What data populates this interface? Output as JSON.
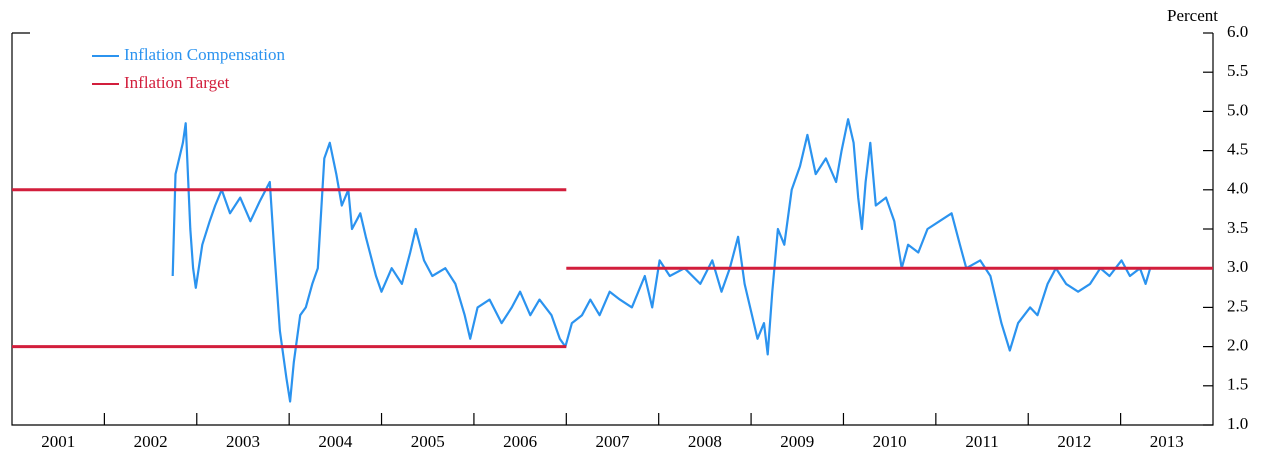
{
  "chart_data": {
    "type": "line",
    "y_axis_label": "Percent",
    "xlim": [
      2001,
      2014
    ],
    "xticks": [
      2001,
      2002,
      2003,
      2004,
      2005,
      2006,
      2007,
      2008,
      2009,
      2010,
      2011,
      2012,
      2013
    ],
    "ylim": [
      1,
      6
    ],
    "yticks": [
      {
        "value": 1,
        "label": "1.0"
      },
      1.5,
      {
        "value": 2,
        "label": "2.0"
      },
      2.5,
      {
        "value": 3,
        "label": "3.0"
      },
      3.5,
      {
        "value": 4,
        "label": "4.0"
      },
      4.5,
      {
        "value": 5,
        "label": "5.0"
      },
      5.5,
      {
        "value": 6,
        "label": "6.0"
      }
    ],
    "series": [
      {
        "name": "Inflation Compensation",
        "color": "#2b93ef",
        "x": [
          2002.74,
          2002.77,
          2002.85,
          2002.88,
          2002.93,
          2002.96,
          2002.99,
          2003.06,
          2003.14,
          2003.2,
          2003.27,
          2003.36,
          2003.47,
          2003.58,
          2003.68,
          2003.79,
          2003.84,
          2003.9,
          2003.97,
          2004.01,
          2004.05,
          2004.12,
          2004.18,
          2004.25,
          2004.31,
          2004.38,
          2004.44,
          2004.51,
          2004.57,
          2004.64,
          2004.68,
          2004.77,
          2004.83,
          2004.94,
          2005.0,
          2005.11,
          2005.22,
          2005.31,
          2005.37,
          2005.46,
          2005.55,
          2005.69,
          2005.8,
          2005.9,
          2005.96,
          2006.04,
          2006.17,
          2006.3,
          2006.41,
          2006.5,
          2006.61,
          2006.71,
          2006.84,
          2006.93,
          2006.99,
          2007.06,
          2007.17,
          2007.26,
          2007.36,
          2007.47,
          2007.58,
          2007.71,
          2007.85,
          2007.93,
          2008.01,
          2008.12,
          2008.28,
          2008.45,
          2008.58,
          2008.68,
          2008.77,
          2008.86,
          2008.93,
          2009.01,
          2009.07,
          2009.14,
          2009.18,
          2009.23,
          2009.29,
          2009.36,
          2009.44,
          2009.53,
          2009.61,
          2009.7,
          2009.81,
          2009.92,
          2009.98,
          2010.05,
          2010.11,
          2010.16,
          2010.2,
          2010.24,
          2010.29,
          2010.35,
          2010.46,
          2010.55,
          2010.63,
          2010.7,
          2010.81,
          2010.91,
          2011.04,
          2011.17,
          2011.26,
          2011.33,
          2011.48,
          2011.59,
          2011.65,
          2011.71,
          2011.8,
          2011.89,
          2012.02,
          2012.1,
          2012.21,
          2012.3,
          2012.41,
          2012.54,
          2012.67,
          2012.78,
          2012.88,
          2013.01,
          2013.1,
          2013.21,
          2013.27,
          2013.32
        ],
        "values": [
          2.9,
          4.2,
          4.6,
          4.85,
          3.5,
          3.0,
          2.75,
          3.3,
          3.6,
          3.8,
          4.0,
          3.7,
          3.9,
          3.6,
          3.85,
          4.1,
          3.2,
          2.2,
          1.6,
          1.3,
          1.8,
          2.4,
          2.5,
          2.8,
          3.0,
          4.4,
          4.6,
          4.2,
          3.8,
          4.0,
          3.5,
          3.7,
          3.4,
          2.9,
          2.7,
          3.0,
          2.8,
          3.2,
          3.5,
          3.1,
          2.9,
          3.0,
          2.8,
          2.4,
          2.1,
          2.5,
          2.6,
          2.3,
          2.5,
          2.7,
          2.4,
          2.6,
          2.4,
          2.1,
          2.0,
          2.3,
          2.4,
          2.6,
          2.4,
          2.7,
          2.6,
          2.5,
          2.9,
          2.5,
          3.1,
          2.9,
          3.0,
          2.8,
          3.1,
          2.7,
          3.0,
          3.4,
          2.8,
          2.4,
          2.1,
          2.3,
          1.9,
          2.7,
          3.5,
          3.3,
          4.0,
          4.3,
          4.7,
          4.2,
          4.4,
          4.1,
          4.5,
          4.9,
          4.6,
          3.9,
          3.5,
          4.1,
          4.6,
          3.8,
          3.9,
          3.6,
          3.0,
          3.3,
          3.2,
          3.5,
          3.6,
          3.7,
          3.3,
          3.0,
          3.1,
          2.9,
          2.6,
          2.3,
          1.95,
          2.3,
          2.5,
          2.4,
          2.8,
          3.0,
          2.8,
          2.7,
          2.8,
          3.0,
          2.9,
          3.1,
          2.9,
          3.0,
          2.8,
          3.0
        ]
      },
      {
        "name": "Inflation Target",
        "color": "#d21e3c",
        "x": [
          2001,
          2007,
          2007,
          2001,
          2007,
          2007,
          2007,
          2014
        ],
        "values": [
          4,
          4,
          null,
          2,
          2,
          null,
          3,
          3
        ]
      }
    ]
  }
}
